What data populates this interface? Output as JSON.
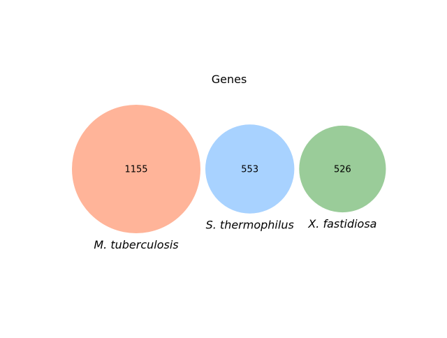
{
  "chart_data": {
    "type": "venn",
    "title": "Genes",
    "sets": [
      {
        "label": "M. tuberculosis",
        "value": 1155,
        "color": "#ffb499"
      },
      {
        "label": "S. thermophilus",
        "value": 553,
        "color": "#a8d2ff"
      },
      {
        "label": "X. fastidiosa",
        "value": 526,
        "color": "#9acc99"
      }
    ],
    "overlaps": []
  }
}
